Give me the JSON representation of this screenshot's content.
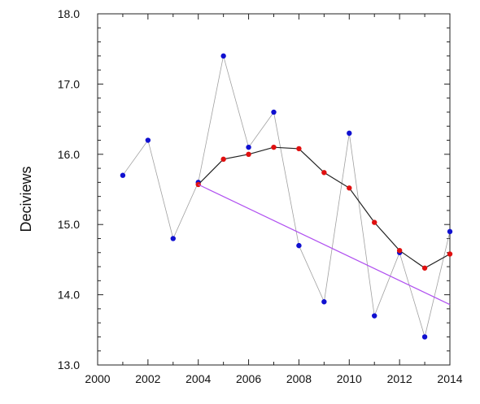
{
  "chart_data": {
    "type": "line",
    "title": "",
    "xlabel": "",
    "ylabel": "Deciviews",
    "xlim": [
      2000,
      2014
    ],
    "ylim": [
      13.0,
      18.0
    ],
    "x_ticks": [
      2000,
      2002,
      2004,
      2006,
      2008,
      2010,
      2012,
      2014
    ],
    "x_tick_labels": [
      "2000",
      "2002",
      "2004",
      "2006",
      "2008",
      "2010",
      "2012",
      "2014"
    ],
    "y_ticks": [
      13.0,
      14.0,
      15.0,
      16.0,
      17.0,
      18.0
    ],
    "y_tick_labels": [
      "13.0",
      "14.0",
      "15.0",
      "16.0",
      "17.0",
      "18.0"
    ],
    "grid": false,
    "series": [
      {
        "x": [
          2001,
          2002,
          2003,
          2004,
          2005,
          2006,
          2007,
          2008,
          2009,
          2010,
          2011,
          2012,
          2013,
          2014
        ],
        "values": [
          15.7,
          16.2,
          14.8,
          15.6,
          17.4,
          16.1,
          16.6,
          14.7,
          13.9,
          16.3,
          13.7,
          14.6,
          13.4,
          14.9
        ],
        "line_color": "#a0a0a0",
        "marker_color": "#1010d0"
      },
      {
        "x": [
          2004,
          2005,
          2006,
          2007,
          2008,
          2009,
          2010,
          2011,
          2012,
          2013,
          2014
        ],
        "values": [
          15.57,
          15.93,
          16.0,
          16.1,
          16.08,
          15.74,
          15.52,
          15.03,
          14.63,
          14.38,
          14.58
        ],
        "line_color": "#222222",
        "marker_color": "#e01010"
      },
      {
        "x": [
          2004,
          2014
        ],
        "values": [
          15.57,
          13.86
        ],
        "line_color": "#b050f0",
        "marker_color": null
      }
    ]
  }
}
